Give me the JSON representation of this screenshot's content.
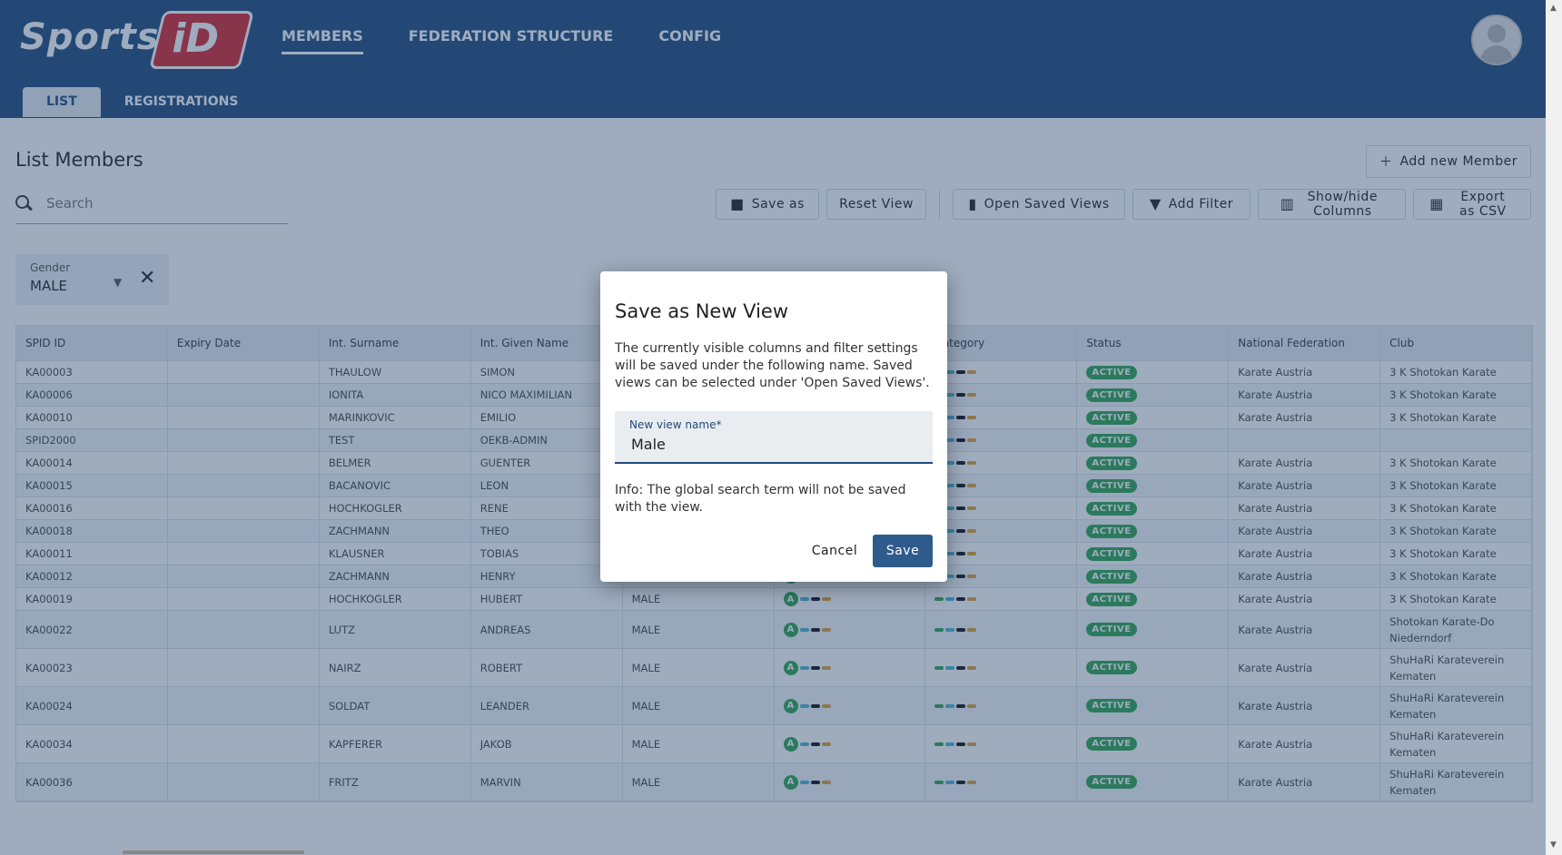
{
  "brand": {
    "text": "Sports",
    "badge": "iD"
  },
  "nav": {
    "members": "MEMBERS",
    "federation": "FEDERATION STRUCTURE",
    "config": "CONFIG"
  },
  "subtabs": {
    "list": "LIST",
    "registrations": "REGISTRATIONS"
  },
  "page": {
    "title": "List Members",
    "add_member": "Add new Member",
    "search_placeholder": "Search"
  },
  "toolbar": {
    "save_as": "Save as",
    "reset_view": "Reset View",
    "open_saved_views": "Open Saved Views",
    "add_filter": "Add Filter",
    "show_hide_columns": "Show/hide Columns",
    "export_csv": "Export as CSV"
  },
  "filter": {
    "label": "Gender",
    "value": "MALE"
  },
  "table": {
    "columns": [
      "SPID ID",
      "Expiry Date",
      "Int. Surname",
      "Int. Given Name",
      "",
      "",
      "Category",
      "Status",
      "National Federation",
      "Club"
    ],
    "rows": [
      {
        "id": "KA00003",
        "surname": "THAULOW",
        "given": "SIMON",
        "gender": "",
        "status": "ACTIVE",
        "federation": "Karate Austria",
        "club": "3 K Shotokan Karate"
      },
      {
        "id": "KA00006",
        "surname": "IONITA",
        "given": "NICO MAXIMILIAN",
        "gender": "",
        "status": "ACTIVE",
        "federation": "Karate Austria",
        "club": "3 K Shotokan Karate"
      },
      {
        "id": "KA00010",
        "surname": "MARINKOVIC",
        "given": "EMILIO",
        "gender": "",
        "status": "ACTIVE",
        "federation": "Karate Austria",
        "club": "3 K Shotokan Karate"
      },
      {
        "id": "SPID2000",
        "surname": "TEST",
        "given": "OEKB-ADMIN",
        "gender": "",
        "status": "ACTIVE",
        "federation": "",
        "club": ""
      },
      {
        "id": "KA00014",
        "surname": "BELMER",
        "given": "GUENTER",
        "gender": "",
        "status": "ACTIVE",
        "federation": "Karate Austria",
        "club": "3 K Shotokan Karate"
      },
      {
        "id": "KA00015",
        "surname": "BACANOVIC",
        "given": "LEON",
        "gender": "",
        "status": "ACTIVE",
        "federation": "Karate Austria",
        "club": "3 K Shotokan Karate"
      },
      {
        "id": "KA00016",
        "surname": "HOCHKOGLER",
        "given": "RENE",
        "gender": "",
        "status": "ACTIVE",
        "federation": "Karate Austria",
        "club": "3 K Shotokan Karate"
      },
      {
        "id": "KA00018",
        "surname": "ZACHMANN",
        "given": "THEO",
        "gender": "",
        "status": "ACTIVE",
        "federation": "Karate Austria",
        "club": "3 K Shotokan Karate"
      },
      {
        "id": "KA00011",
        "surname": "KLAUSNER",
        "given": "TOBIAS",
        "gender": "",
        "status": "ACTIVE",
        "federation": "Karate Austria",
        "club": "3 K Shotokan Karate"
      },
      {
        "id": "KA00012",
        "surname": "ZACHMANN",
        "given": "HENRY",
        "gender": "MALE",
        "status": "ACTIVE",
        "federation": "Karate Austria",
        "club": "3 K Shotokan Karate"
      },
      {
        "id": "KA00019",
        "surname": "HOCHKOGLER",
        "given": "HUBERT",
        "gender": "MALE",
        "status": "ACTIVE",
        "federation": "Karate Austria",
        "club": "3 K Shotokan Karate"
      },
      {
        "id": "KA00022",
        "surname": "LUTZ",
        "given": "ANDREAS",
        "gender": "MALE",
        "status": "ACTIVE",
        "federation": "Karate Austria",
        "club": "Shotokan Karate-Do Niederndorf"
      },
      {
        "id": "KA00023",
        "surname": "NAIRZ",
        "given": "ROBERT",
        "gender": "MALE",
        "status": "ACTIVE",
        "federation": "Karate Austria",
        "club": "ShuHaRi Karateverein Kematen"
      },
      {
        "id": "KA00024",
        "surname": "SOLDAT",
        "given": "LEANDER",
        "gender": "MALE",
        "status": "ACTIVE",
        "federation": "Karate Austria",
        "club": "ShuHaRi Karateverein Kematen"
      },
      {
        "id": "KA00034",
        "surname": "KAPFERER",
        "given": "JAKOB",
        "gender": "MALE",
        "status": "ACTIVE",
        "federation": "Karate Austria",
        "club": "ShuHaRi Karateverein Kematen"
      },
      {
        "id": "KA00036",
        "surname": "FRITZ",
        "given": "MARVIN",
        "gender": "MALE",
        "status": "ACTIVE",
        "federation": "Karate Austria",
        "club": "ShuHaRi Karateverein Kematen"
      }
    ]
  },
  "dialog": {
    "title": "Save as New View",
    "text": "The currently visible columns and filter settings will be saved under the following name. Saved views can be selected under 'Open Saved Views'.",
    "field_label": "New view name*",
    "field_value": "Male",
    "info": "Info: The global search term will not be saved with the view.",
    "cancel": "Cancel",
    "save": "Save"
  },
  "colors": {
    "header": "#1f4a7c",
    "status": "#2ea44f",
    "primary_button": "#2f5b8c"
  }
}
